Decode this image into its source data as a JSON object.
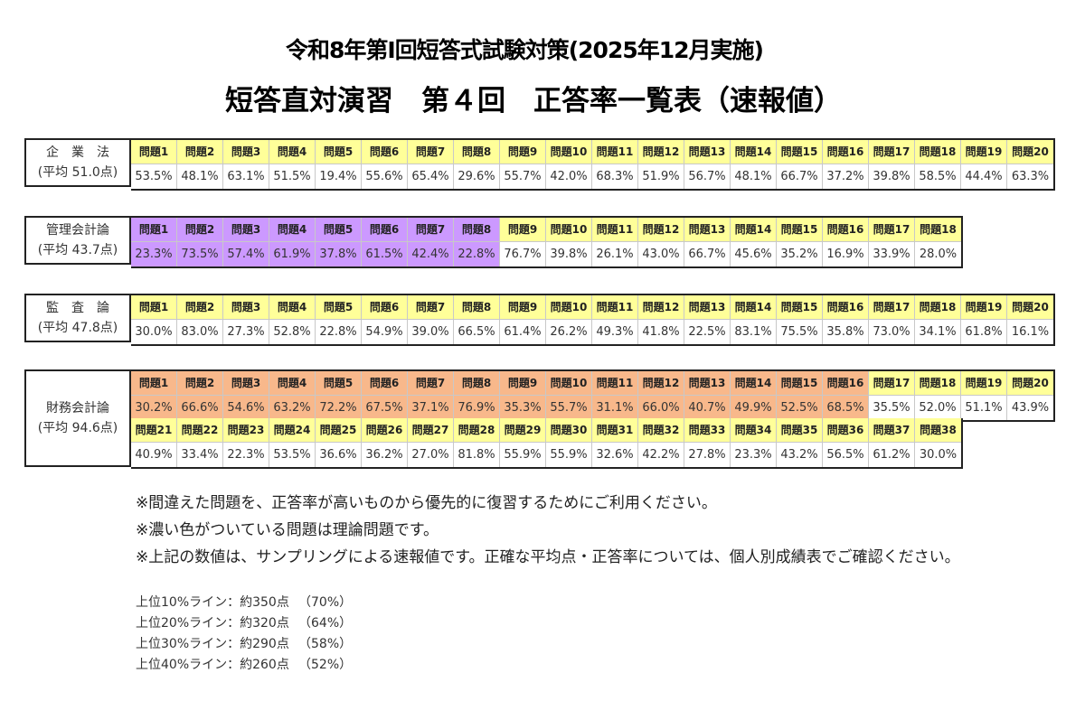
{
  "header": {
    "title": "令和8年第Ⅰ回短答式試験対策(2025年12月実施)",
    "subtitle": "短答直対演習　第４回　正答率一覧表（速報値）"
  },
  "colors": {
    "header_yellow": "#ffff99",
    "theory_purple": "#cc99ff",
    "theory_orange": "#f8b88b",
    "border": "#222222"
  },
  "subjects": [
    {
      "name": "企　業　法",
      "average": "(平均 51.0点)",
      "theme": "yellow",
      "theory_count": 0,
      "questions": [
        "問題1",
        "問題2",
        "問題3",
        "問題4",
        "問題5",
        "問題6",
        "問題7",
        "問題8",
        "問題9",
        "問題10",
        "問題11",
        "問題12",
        "問題13",
        "問題14",
        "問題15",
        "問題16",
        "問題17",
        "問題18",
        "問題19",
        "問題20"
      ],
      "rates": [
        "53.5%",
        "48.1%",
        "63.1%",
        "51.5%",
        "19.4%",
        "55.6%",
        "65.4%",
        "29.6%",
        "55.7%",
        "42.0%",
        "68.3%",
        "51.9%",
        "56.7%",
        "48.1%",
        "66.7%",
        "37.2%",
        "39.8%",
        "58.5%",
        "44.4%",
        "63.3%"
      ]
    },
    {
      "name": "管理会計論",
      "average": "(平均 43.7点)",
      "theme": "purple",
      "theory_count": 8,
      "questions": [
        "問題1",
        "問題2",
        "問題3",
        "問題4",
        "問題5",
        "問題6",
        "問題7",
        "問題8",
        "問題9",
        "問題10",
        "問題11",
        "問題12",
        "問題13",
        "問題14",
        "問題15",
        "問題16",
        "問題17",
        "問題18"
      ],
      "rates": [
        "23.3%",
        "73.5%",
        "57.4%",
        "61.9%",
        "37.8%",
        "61.5%",
        "42.4%",
        "22.8%",
        "76.7%",
        "39.8%",
        "26.1%",
        "43.0%",
        "66.7%",
        "45.6%",
        "35.2%",
        "16.9%",
        "33.9%",
        "28.0%"
      ]
    },
    {
      "name": "監　査　論",
      "average": "(平均 47.8点)",
      "theme": "yellow",
      "theory_count": 0,
      "questions": [
        "問題1",
        "問題2",
        "問題3",
        "問題4",
        "問題5",
        "問題6",
        "問題7",
        "問題8",
        "問題9",
        "問題10",
        "問題11",
        "問題12",
        "問題13",
        "問題14",
        "問題15",
        "問題16",
        "問題17",
        "問題18",
        "問題19",
        "問題20"
      ],
      "rates": [
        "30.0%",
        "83.0%",
        "27.3%",
        "52.8%",
        "22.8%",
        "54.9%",
        "39.0%",
        "66.5%",
        "61.4%",
        "26.2%",
        "49.3%",
        "41.8%",
        "22.5%",
        "83.1%",
        "75.5%",
        "35.8%",
        "73.0%",
        "34.1%",
        "61.8%",
        "16.1%"
      ]
    },
    {
      "name": "財務会計論",
      "average": "(平均 94.6点)",
      "theme": "orange",
      "theory_count": 16,
      "questions": [
        "問題1",
        "問題2",
        "問題3",
        "問題4",
        "問題5",
        "問題6",
        "問題7",
        "問題8",
        "問題9",
        "問題10",
        "問題11",
        "問題12",
        "問題13",
        "問題14",
        "問題15",
        "問題16",
        "問題17",
        "問題18",
        "問題19",
        "問題20",
        "問題21",
        "問題22",
        "問題23",
        "問題24",
        "問題25",
        "問題26",
        "問題27",
        "問題28",
        "問題29",
        "問題30",
        "問題31",
        "問題32",
        "問題33",
        "問題34",
        "問題35",
        "問題36",
        "問題37",
        "問題38"
      ],
      "rates": [
        "30.2%",
        "66.6%",
        "54.6%",
        "63.2%",
        "72.2%",
        "67.5%",
        "37.1%",
        "76.9%",
        "35.3%",
        "55.7%",
        "31.1%",
        "66.0%",
        "40.7%",
        "49.9%",
        "52.5%",
        "68.5%",
        "35.5%",
        "52.0%",
        "51.1%",
        "43.9%",
        "40.9%",
        "33.4%",
        "22.3%",
        "53.5%",
        "36.6%",
        "36.2%",
        "27.0%",
        "81.8%",
        "55.9%",
        "55.9%",
        "32.6%",
        "42.2%",
        "27.8%",
        "23.3%",
        "43.2%",
        "56.5%",
        "61.2%",
        "30.0%"
      ]
    }
  ],
  "notes": [
    "※間違えた問題を、正答率が高いものから優先的に復習するためにご利用ください。",
    "※濃い色がついている問題は理論問題です。",
    "※上記の数値は、サンプリングによる速報値です。正確な平均点・正答率については、個人別成績表でご確認ください。"
  ],
  "lines": [
    {
      "label": "上位10%ライン：約350点",
      "pct": "（70%）"
    },
    {
      "label": "上位20%ライン：約320点",
      "pct": "（64%）"
    },
    {
      "label": "上位30%ライン：約290点",
      "pct": "（58%）"
    },
    {
      "label": "上位40%ライン：約260点",
      "pct": "（52%）"
    }
  ]
}
